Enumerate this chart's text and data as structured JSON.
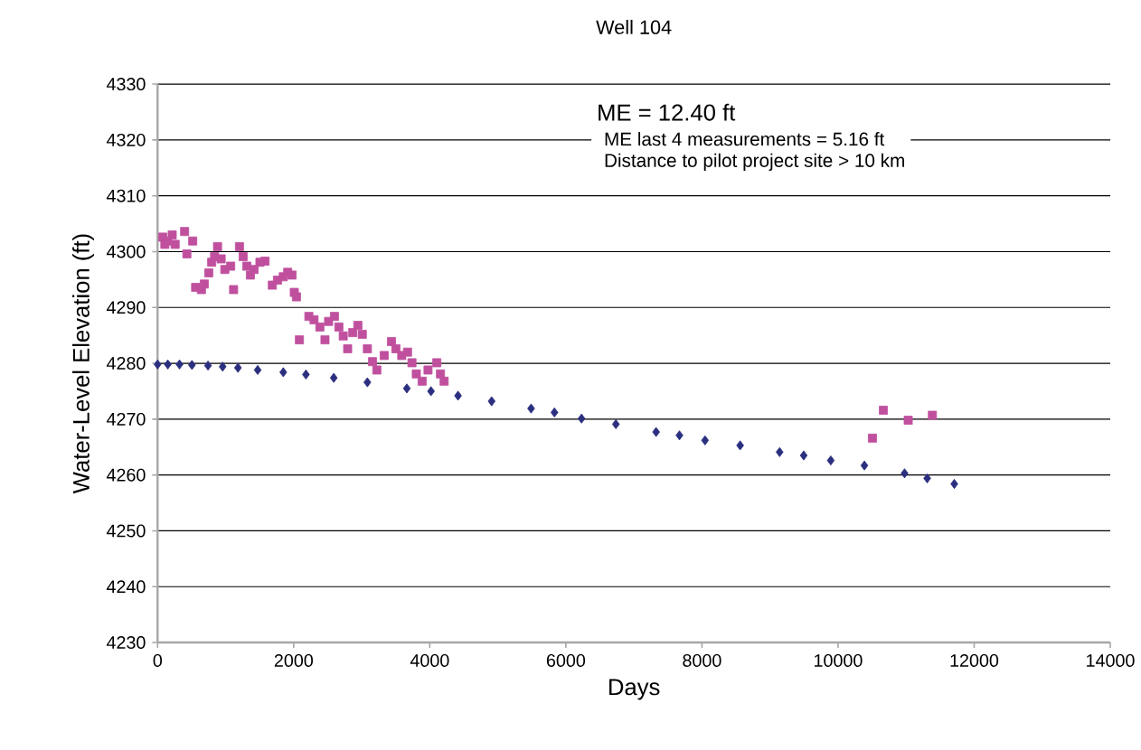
{
  "chart_data": {
    "type": "scatter",
    "title": "Well 104",
    "xlabel": "Days",
    "ylabel": "Water-Level Elevation (ft)",
    "xlim": [
      0,
      14000
    ],
    "xticks": [
      0,
      2000,
      4000,
      6000,
      8000,
      10000,
      12000,
      14000
    ],
    "ylim": [
      4230,
      4330
    ],
    "yticks": [
      4230,
      4240,
      4250,
      4260,
      4270,
      4280,
      4290,
      4300,
      4310,
      4320,
      4330
    ],
    "grid": "y",
    "annotations": [
      "ME = 12.40 ft",
      "ME last 4 measurements = 5.16 ft",
      "Distance to pilot project site > 10 km"
    ],
    "series": [
      {
        "color": "#2b2f7f",
        "marker": "diamond",
        "x": [
          0,
          150,
          322,
          505,
          741,
          956,
          1181,
          1471,
          1847,
          2180,
          2589,
          3083,
          3663,
          4018,
          4415,
          4909,
          5489,
          5832,
          6230,
          6735,
          7326,
          7669,
          8045,
          8561,
          9141,
          9495,
          9893,
          10387,
          10977,
          11310,
          11708
        ],
        "values": [
          4279.8,
          4279.8,
          4279.8,
          4279.7,
          4279.6,
          4279.4,
          4279.2,
          4278.8,
          4278.4,
          4278.0,
          4277.4,
          4276.6,
          4275.5,
          4275.0,
          4274.2,
          4273.2,
          4271.9,
          4271.2,
          4270.1,
          4269.1,
          4267.7,
          4267.1,
          4266.2,
          4265.3,
          4264.1,
          4263.5,
          4262.6,
          4261.7,
          4260.3,
          4259.4,
          4258.4
        ]
      },
      {
        "color": "#c0509e",
        "marker": "square",
        "x": [
          75,
          150,
          215,
          107,
          258,
          397,
          430,
          516,
          559,
          644,
          687,
          752,
          795,
          838,
          881,
          934,
          988,
          1074,
          1117,
          1203,
          1257,
          1311,
          1364,
          1418,
          1504,
          1579,
          1686,
          1762,
          1847,
          1912,
          1976,
          2009,
          2041,
          2084,
          2223,
          2299,
          2385,
          2460,
          2513,
          2599,
          2664,
          2728,
          2793,
          2868,
          2943,
          3008,
          3083,
          3158,
          3222,
          3330,
          3437,
          3502,
          3588,
          3673,
          3738,
          3802,
          3888,
          3974,
          4103,
          4157,
          4211,
          10505,
          10666,
          11031,
          11386
        ],
        "values": [
          4302.6,
          4301.9,
          4303.0,
          4301.3,
          4301.3,
          4303.6,
          4299.6,
          4301.9,
          4293.6,
          4293.2,
          4294.2,
          4296.2,
          4298.1,
          4299.1,
          4300.9,
          4298.7,
          4296.8,
          4297.4,
          4293.2,
          4300.9,
          4299.1,
          4297.4,
          4295.8,
          4296.8,
          4298.1,
          4298.3,
          4294.0,
          4294.9,
          4295.5,
          4296.3,
          4295.8,
          4292.7,
          4291.9,
          4284.2,
          4288.4,
          4287.8,
          4286.5,
          4284.2,
          4287.5,
          4288.4,
          4286.5,
          4284.9,
          4282.6,
          4285.5,
          4286.8,
          4285.2,
          4282.6,
          4280.3,
          4278.8,
          4281.4,
          4283.9,
          4282.6,
          4281.4,
          4282.0,
          4280.1,
          4278.1,
          4276.8,
          4278.8,
          4280.1,
          4278.1,
          4276.8,
          4266.6,
          4271.6,
          4269.8,
          4270.7
        ]
      }
    ]
  }
}
